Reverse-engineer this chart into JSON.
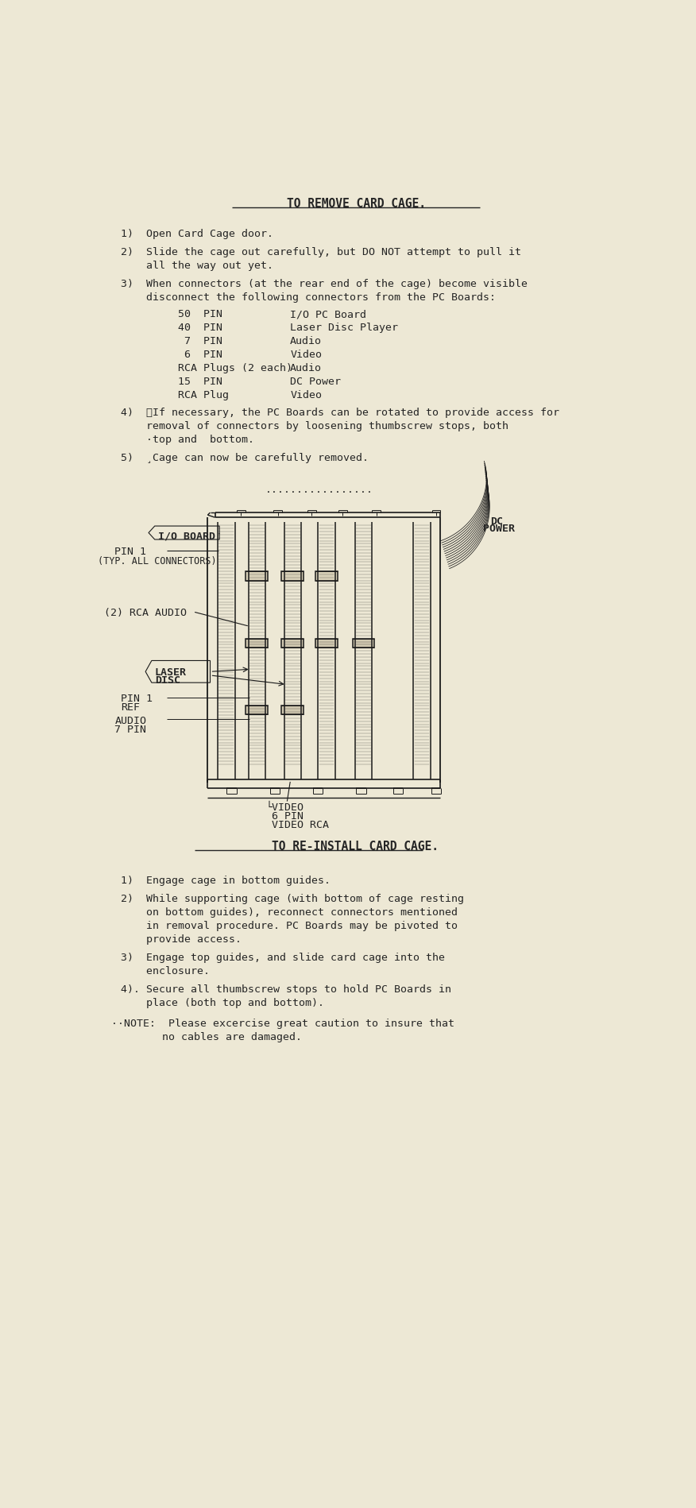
{
  "bg_color": "#ede8d5",
  "text_color": "#252525",
  "title1": "TO REMOVE CARD CAGE.",
  "title2": "TO RE-INSTALL CARD CAGE.",
  "step1": "1)  Open Card Cage door.",
  "step2a": "2)  Slide the cage out carefully, but DO NOT attempt to pull it",
  "step2b": "    all the way out yet.",
  "step3a": "3)  When connectors (at the rear end of the cage) become visible",
  "step3b": "    disconnect the following connectors from the PC Boards:",
  "connector_rows": [
    [
      "50  PIN",
      "I/O PC Board"
    ],
    [
      "40  PIN",
      "Laser Disc Player"
    ],
    [
      " 7  PIN",
      "Audio"
    ],
    [
      " 6  PIN",
      "Video"
    ],
    [
      "RCA Plugs (2 each)",
      "Audio"
    ],
    [
      "15  PIN",
      "DC Power"
    ],
    [
      "RCA Plug",
      "Video"
    ]
  ],
  "step4a": "4)  ˋIf necessary, the PC Boards can be rotated to provide access for",
  "step4b": "    removal of connectors by loosening thumbscrew stops, both",
  "step4c": "    ·top and  bottom.",
  "step5": "5)  ¸Cage can now be carefully removed.",
  "dots": ".................",
  "ri_step1": "1)  Engage cage in bottom guides.",
  "ri_step2a": "2)  While supporting cage (with bottom of cage resting",
  "ri_step2b": "    on bottom guides), reconnect connectors mentioned",
  "ri_step2c": "    in removal procedure. PC Boards may be pivoted to",
  "ri_step2d": "    provide access.",
  "ri_step3a": "3)  Engage top guides, and slide card cage into the",
  "ri_step3b": "    enclosure.",
  "ri_step4a": "4). Secure all thumbscrew stops to hold PC Boards in",
  "ri_step4b": "    place (both top and bottom).",
  "ri_note1": "··NOTE:  Please excercise great caution to insure that",
  "ri_note2": "        no cables are damaged.",
  "font_body": 9.5,
  "font_title": 10.5,
  "font_diag": 8.5
}
